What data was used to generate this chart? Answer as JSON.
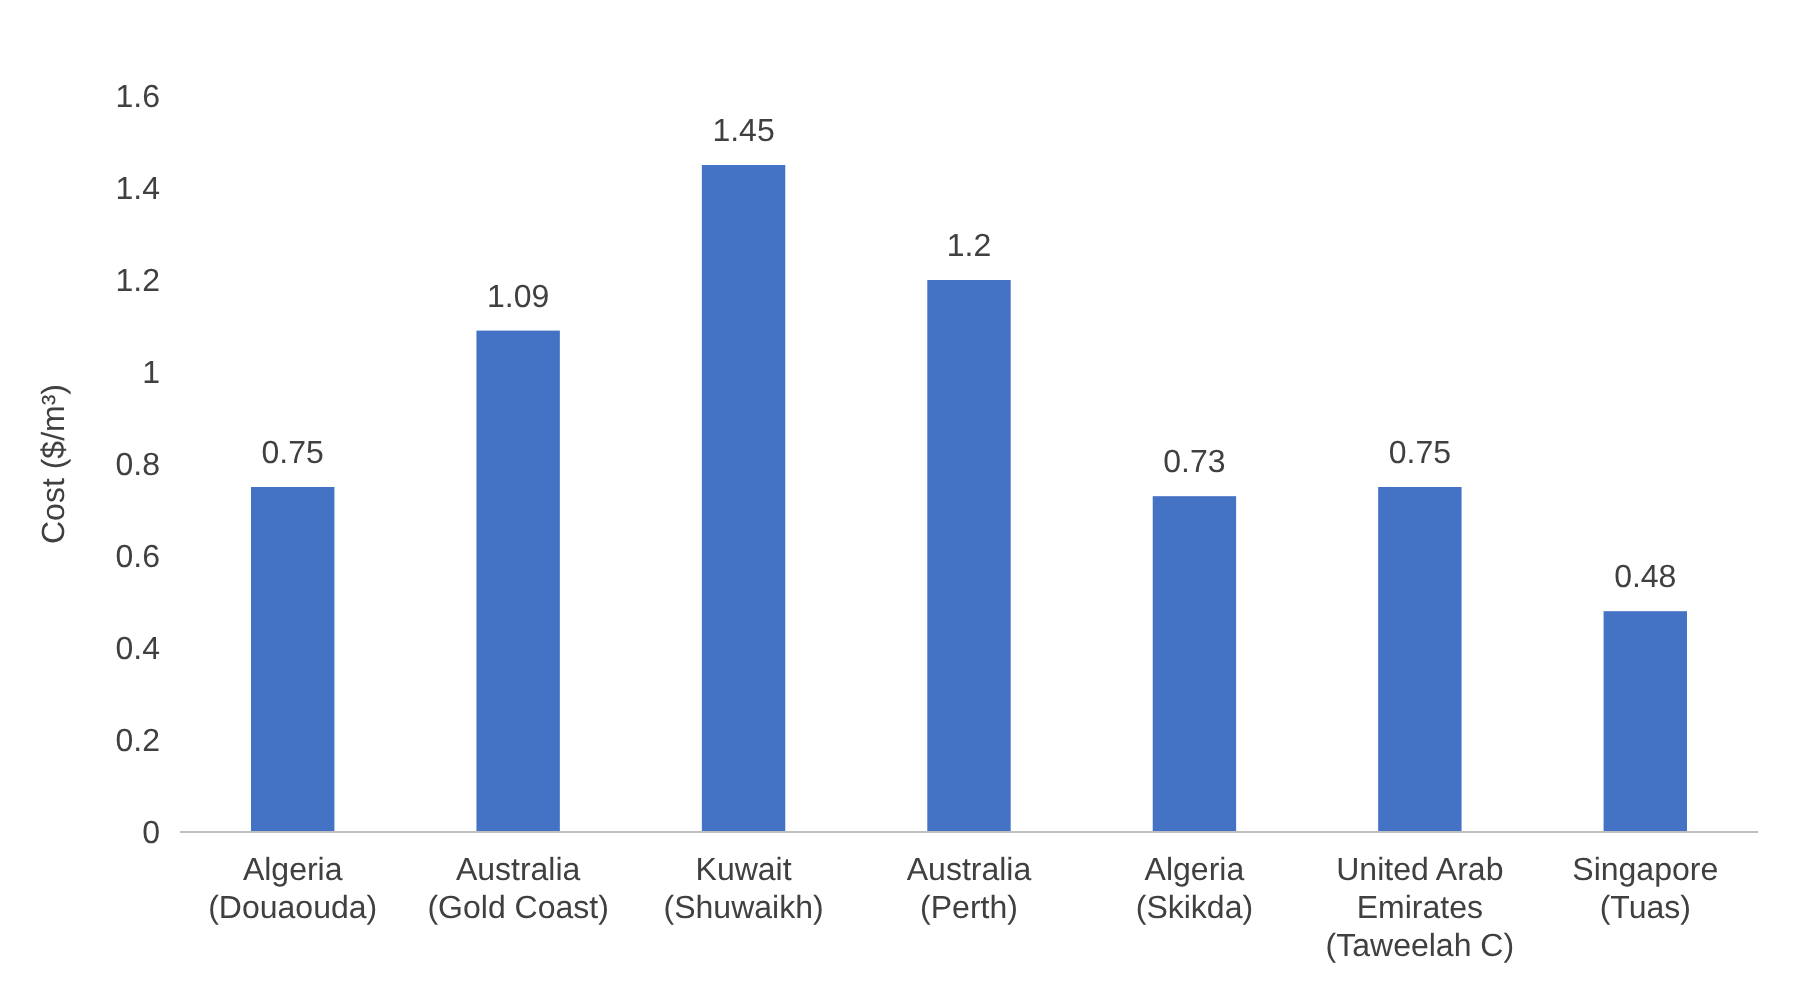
{
  "chart_data": {
    "type": "bar",
    "ylabel": "Cost ($/m³)",
    "categories": [
      "Algeria (Douaouda)",
      "Australia (Gold Coast)",
      "Kuwait (Shuwaikh)",
      "Australia (Perth)",
      "Algeria (Skikda)",
      "United Arab Emirates (Taweelah C)",
      "Singapore (Tuas)"
    ],
    "values": [
      0.75,
      1.09,
      1.45,
      1.2,
      0.73,
      0.75,
      0.48
    ],
    "color": "#4472c4",
    "ylim": [
      0,
      1.6
    ],
    "yticks": [
      0,
      0.2,
      0.4,
      0.6,
      0.8,
      1,
      1.2,
      1.4,
      1.6
    ],
    "data_labels": true
  }
}
